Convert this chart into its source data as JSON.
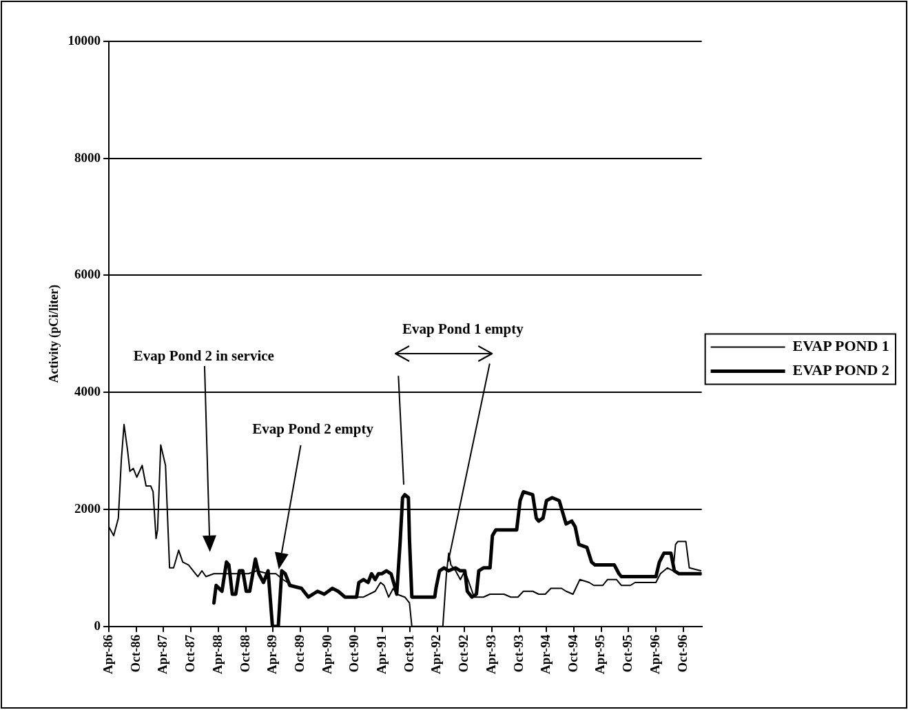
{
  "chart_data": {
    "type": "line",
    "ylabel": "Activity (pCi/liter)",
    "xlim": [
      "1986-04",
      "1997-02"
    ],
    "xticks": [
      {
        "value": "1986-04",
        "label": "Apr-86"
      },
      {
        "value": "1986-10",
        "label": "Oct-86"
      },
      {
        "value": "1987-04",
        "label": "Apr-87"
      },
      {
        "value": "1987-10",
        "label": "Oct-87"
      },
      {
        "value": "1988-04",
        "label": "Apr-88"
      },
      {
        "value": "1988-10",
        "label": "Oct-88"
      },
      {
        "value": "1989-04",
        "label": "Apr-89"
      },
      {
        "value": "1989-10",
        "label": "Oct-89"
      },
      {
        "value": "1990-04",
        "label": "Apr-90"
      },
      {
        "value": "1990-10",
        "label": "Oct-90"
      },
      {
        "value": "1991-04",
        "label": "Apr-91"
      },
      {
        "value": "1991-10",
        "label": "Oct-91"
      },
      {
        "value": "1992-04",
        "label": "Apr-92"
      },
      {
        "value": "1992-10",
        "label": "Oct-92"
      },
      {
        "value": "1993-04",
        "label": "Apr-93"
      },
      {
        "value": "1993-10",
        "label": "Oct-93"
      },
      {
        "value": "1994-04",
        "label": "Apr-94"
      },
      {
        "value": "1994-10",
        "label": "Oct-94"
      },
      {
        "value": "1995-04",
        "label": "Apr-95"
      },
      {
        "value": "1995-10",
        "label": "Oct-95"
      },
      {
        "value": "1996-04",
        "label": "Apr-96"
      },
      {
        "value": "1996-10",
        "label": "Oct-96"
      }
    ],
    "ylim": [
      0,
      10000
    ],
    "yticks": [
      0,
      2000,
      4000,
      6000,
      8000,
      10000
    ],
    "grid": "y",
    "legend": "right",
    "annotations": [
      "Evap Pond 2 in service",
      "Evap Pond 2 empty",
      "Evap Pond 1 empty"
    ],
    "series": [
      {
        "name": "EVAP POND 1",
        "color": "#000000",
        "x": [
          "1986-04-01",
          "1986-05-03",
          "1986-06-03",
          "1986-06-23",
          "1986-07-11",
          "1986-08-04",
          "1986-08-19",
          "1986-09-11",
          "1986-10-04",
          "1986-11-09",
          "1986-12-05",
          "1987-01-05",
          "1987-01-21",
          "1987-02-10",
          "1987-02-20",
          "1987-03-13",
          "1987-04-14",
          "1987-05-11",
          "1987-06-07",
          "1987-07-11",
          "1987-08-07",
          "1987-09-15",
          "1987-11-16",
          "1987-12-13",
          "1988-01-09",
          "1988-03-02",
          "1988-05-02",
          "1988-07-18",
          "1988-10-18",
          "1988-12-13",
          "1989-02-26",
          "1989-04-20",
          "1989-06-06",
          "1989-08-07",
          "1989-10-08",
          "1989-11-23",
          "1990-01-23",
          "1990-03-09",
          "1990-05-02",
          "1990-07-25",
          "1990-08-25",
          "1990-10-11",
          "1990-11-26",
          "1991-02-12",
          "1991-03-20",
          "1991-04-13",
          "1991-05-13",
          "1991-06-13",
          "1991-07-06",
          "1991-08-29",
          "1991-09-29",
          "1991-10-15",
          "1992-05-09",
          "1992-06-02",
          "1992-06-17",
          "1992-07-02",
          "1992-08-02",
          "1992-09-03",
          "1992-10-03",
          "1992-12-04",
          "1993-02-04",
          "1993-03-20",
          "1993-06-21",
          "1993-08-06",
          "1993-09-22",
          "1993-10-29",
          "1993-12-30",
          "1994-02-08",
          "1994-03-24",
          "1994-05-01",
          "1994-07-10",
          "1994-08-10",
          "1994-09-25",
          "1994-11-10",
          "1995-01-11",
          "1995-02-11",
          "1995-04-12",
          "1995-05-13",
          "1995-07-13",
          "1995-08-14",
          "1995-10-14",
          "1995-11-14",
          "1996-04-01",
          "1996-05-01",
          "1996-06-17",
          "1996-07-25",
          "1996-08-10",
          "1996-08-25",
          "1996-10-18",
          "1996-11-10",
          "1997-01-26"
        ],
        "values": [
          1700,
          1550,
          1850,
          2850,
          3450,
          3000,
          2650,
          2700,
          2550,
          2750,
          2400,
          2400,
          2300,
          1500,
          1650,
          3100,
          2750,
          1000,
          1000,
          1300,
          1100,
          1050,
          850,
          950,
          850,
          900,
          900,
          900,
          900,
          950,
          900,
          900,
          800,
          700,
          650,
          500,
          600,
          550,
          650,
          500,
          500,
          500,
          500,
          600,
          750,
          700,
          500,
          650,
          550,
          500,
          400,
          0,
          0,
          900,
          1250,
          1050,
          950,
          800,
          950,
          500,
          500,
          550,
          550,
          500,
          500,
          600,
          600,
          550,
          550,
          650,
          650,
          600,
          550,
          800,
          750,
          700,
          700,
          800,
          800,
          700,
          700,
          750,
          750,
          900,
          1000,
          950,
          1400,
          1450,
          1450,
          1000,
          950
        ]
      },
      {
        "name": "EVAP POND 2",
        "color": "#000000",
        "x": [
          "1988-03-02",
          "1988-03-17",
          "1988-04-25",
          "1988-05-25",
          "1988-06-10",
          "1988-07-03",
          "1988-07-26",
          "1988-08-19",
          "1988-09-11",
          "1988-10-04",
          "1988-10-27",
          "1988-12-04",
          "1988-12-27",
          "1989-01-27",
          "1989-02-27",
          "1989-03-28",
          "1989-05-06",
          "1989-05-29",
          "1989-06-21",
          "1989-07-22",
          "1989-10-08",
          "1989-11-23",
          "1990-01-23",
          "1990-03-09",
          "1990-05-02",
          "1990-06-10",
          "1990-07-25",
          "1990-08-25",
          "1990-10-11",
          "1990-10-26",
          "1990-11-26",
          "1990-12-27",
          "1991-01-19",
          "1991-02-12",
          "1991-03-06",
          "1991-03-28",
          "1991-04-28",
          "1991-05-29",
          "1991-06-21",
          "1991-07-06",
          "1991-07-29",
          "1991-08-14",
          "1991-08-29",
          "1991-09-22",
          "1991-09-29",
          "1991-10-15",
          "1991-11-30",
          "1992-03-16",
          "1992-03-24",
          "1992-04-17",
          "1992-05-17",
          "1992-06-17",
          "1992-08-02",
          "1992-09-03",
          "1992-10-03",
          "1992-10-19",
          "1992-11-19",
          "1992-12-19",
          "1993-01-04",
          "1993-02-04",
          "1993-03-20",
          "1993-04-05",
          "1993-04-28",
          "1993-06-21",
          "1993-08-06",
          "1993-09-14",
          "1993-10-07",
          "1993-10-29",
          "1993-12-30",
          "1994-01-23",
          "1994-02-08",
          "1994-03-09",
          "1994-04-01",
          "1994-05-09",
          "1994-06-25",
          "1994-07-18",
          "1994-08-10",
          "1994-09-17",
          "1994-10-10",
          "1994-11-03",
          "1994-12-27",
          "1995-01-27",
          "1995-02-19",
          "1995-06-28",
          "1995-07-29",
          "1995-08-14",
          "1996-01-15",
          "1996-04-01",
          "1996-04-24",
          "1996-05-24",
          "1996-07-10",
          "1996-08-02",
          "1996-09-02",
          "1996-11-18",
          "1997-01-26"
        ],
        "values": [
          400,
          700,
          600,
          1100,
          1050,
          550,
          550,
          950,
          950,
          600,
          600,
          1150,
          900,
          750,
          950,
          0,
          0,
          950,
          900,
          700,
          650,
          500,
          600,
          550,
          650,
          600,
          500,
          500,
          500,
          750,
          800,
          750,
          900,
          800,
          900,
          900,
          950,
          900,
          700,
          550,
          1450,
          2200,
          2250,
          2200,
          1500,
          500,
          500,
          500,
          650,
          950,
          1000,
          950,
          1000,
          950,
          950,
          600,
          500,
          550,
          950,
          1000,
          1000,
          1550,
          1650,
          1650,
          1650,
          1650,
          2150,
          2300,
          2250,
          1850,
          1800,
          1850,
          2150,
          2200,
          2150,
          1950,
          1750,
          1800,
          1700,
          1400,
          1350,
          1100,
          1050,
          1050,
          900,
          850,
          850,
          850,
          1100,
          1250,
          1250,
          950,
          900,
          900,
          900
        ]
      }
    ]
  }
}
